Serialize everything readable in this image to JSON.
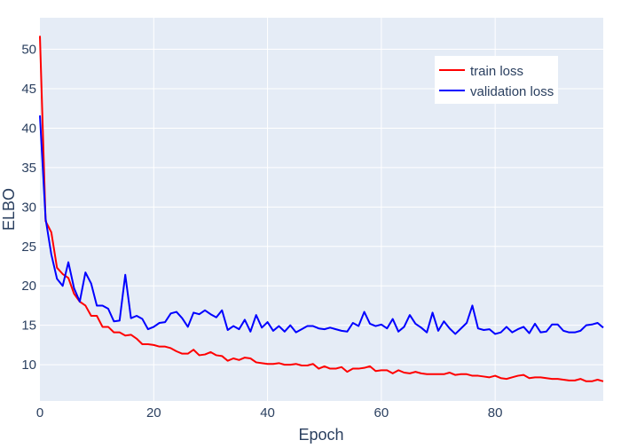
{
  "chart_data": {
    "type": "line",
    "xlabel": "Epoch",
    "ylabel": "ELBO",
    "xlim": [
      0,
      99
    ],
    "ylim": [
      5.4,
      54
    ],
    "x_ticks": [
      0,
      20,
      40,
      60,
      80
    ],
    "y_ticks": [
      10,
      15,
      20,
      25,
      30,
      35,
      40,
      45,
      50
    ],
    "grid": true,
    "legend_position": "top-right",
    "colors": {
      "plot_bg": "#e5ecf6",
      "grid": "#ffffff",
      "text": "#2a3f5f"
    },
    "series": [
      {
        "name": "train loss",
        "color": "#ff0000",
        "values": [
          51.7,
          28.2,
          26.8,
          22.3,
          21.5,
          21.0,
          19.0,
          18.0,
          17.5,
          16.2,
          16.2,
          14.8,
          14.8,
          14.1,
          14.1,
          13.7,
          13.8,
          13.3,
          12.6,
          12.6,
          12.5,
          12.3,
          12.3,
          12.1,
          11.7,
          11.4,
          11.4,
          11.9,
          11.2,
          11.3,
          11.6,
          11.2,
          11.1,
          10.5,
          10.8,
          10.6,
          10.9,
          10.8,
          10.3,
          10.2,
          10.1,
          10.1,
          10.2,
          10.0,
          10.0,
          10.1,
          9.9,
          9.9,
          10.1,
          9.5,
          9.8,
          9.5,
          9.5,
          9.7,
          9.1,
          9.5,
          9.5,
          9.6,
          9.8,
          9.2,
          9.3,
          9.3,
          8.9,
          9.3,
          9.0,
          8.9,
          9.1,
          8.9,
          8.8,
          8.8,
          8.8,
          8.8,
          9.0,
          8.7,
          8.8,
          8.8,
          8.6,
          8.6,
          8.5,
          8.4,
          8.6,
          8.3,
          8.2,
          8.4,
          8.6,
          8.7,
          8.3,
          8.4,
          8.4,
          8.3,
          8.2,
          8.2,
          8.1,
          8.0,
          8.0,
          8.2,
          7.9,
          7.9,
          8.1,
          7.9
        ]
      },
      {
        "name": "validation loss",
        "color": "#0000ff",
        "values": [
          41.6,
          28.5,
          24.0,
          20.9,
          20.0,
          23.0,
          19.7,
          18.0,
          21.7,
          20.3,
          17.5,
          17.5,
          17.1,
          15.5,
          15.6,
          21.4,
          15.9,
          16.2,
          15.8,
          14.5,
          14.8,
          15.3,
          15.4,
          16.5,
          16.7,
          15.9,
          14.8,
          16.6,
          16.4,
          16.9,
          16.4,
          16.0,
          16.9,
          14.4,
          14.9,
          14.5,
          15.7,
          14.2,
          16.3,
          14.7,
          15.4,
          14.3,
          14.9,
          14.2,
          15.0,
          14.1,
          14.5,
          14.9,
          14.9,
          14.6,
          14.5,
          14.7,
          14.5,
          14.3,
          14.2,
          15.3,
          14.9,
          16.7,
          15.2,
          14.9,
          15.1,
          14.6,
          15.8,
          14.2,
          14.8,
          16.3,
          15.2,
          14.7,
          14.1,
          16.6,
          14.3,
          15.5,
          14.6,
          13.9,
          14.6,
          15.3,
          17.5,
          14.6,
          14.4,
          14.5,
          13.9,
          14.1,
          14.8,
          14.1,
          14.5,
          14.8,
          14.0,
          15.2,
          14.1,
          14.2,
          15.1,
          15.1,
          14.3,
          14.1,
          14.1,
          14.3,
          15.0,
          15.1,
          15.3,
          14.7
        ]
      }
    ]
  }
}
